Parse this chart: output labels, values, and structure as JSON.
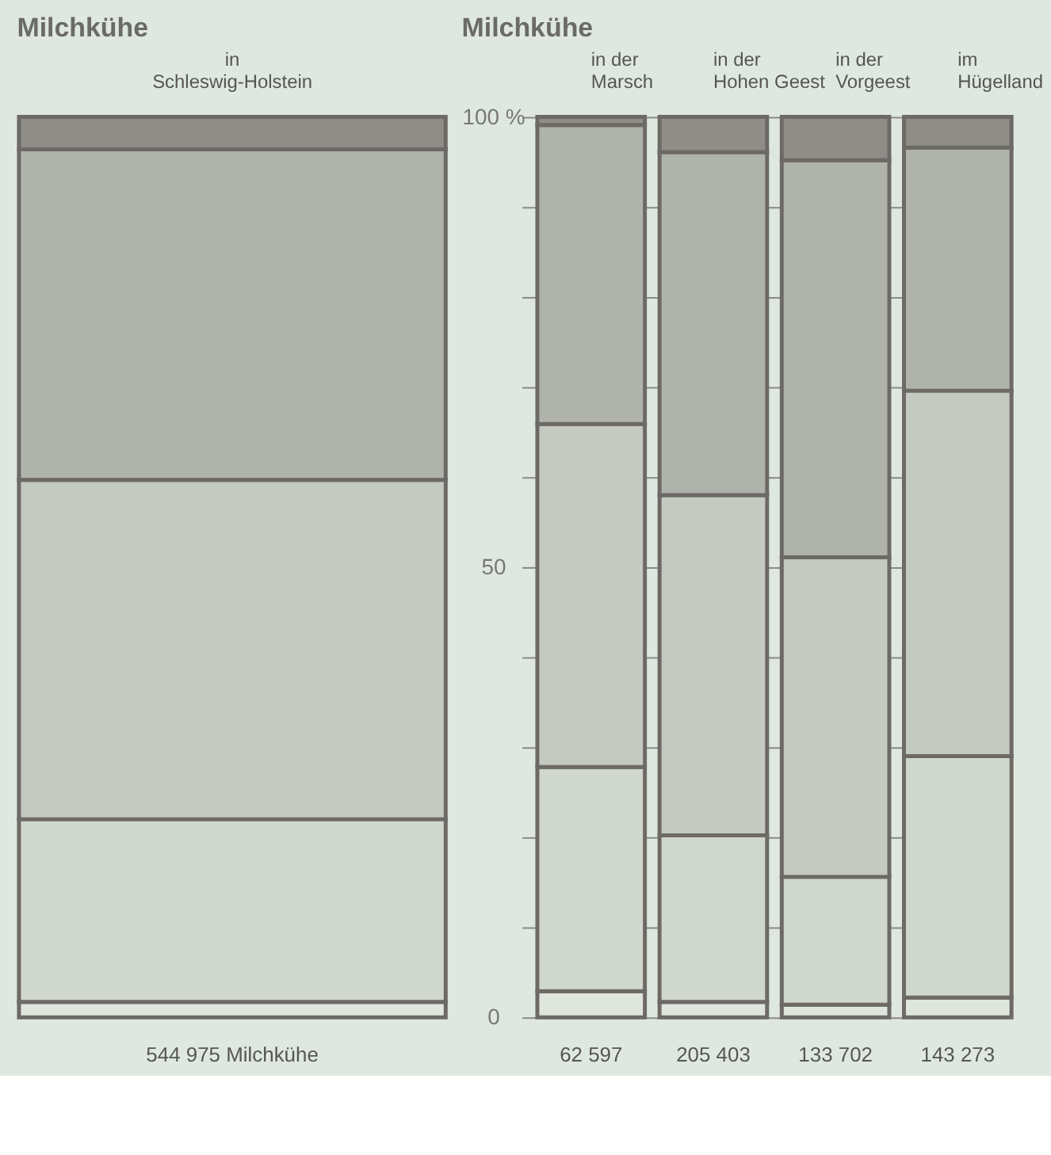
{
  "chart_data": [
    {
      "type": "bar",
      "title": "Milchkühe",
      "stacked": true,
      "categories": [
        "in\nSchleswig-Holstein"
      ],
      "series": [
        {
          "color": "#dfe6dd",
          "values": [
            1.7
          ]
        },
        {
          "color": "#d0d7cd",
          "values": [
            20.3
          ]
        },
        {
          "color": "#c4c9c1",
          "values": [
            37.7
          ]
        },
        {
          "color": "#b0b3ab",
          "values": [
            36.7
          ]
        },
        {
          "color": "#8e8d87",
          "values": [
            3.6
          ]
        }
      ],
      "ylim": [
        0,
        100
      ],
      "tick_labels": "x",
      "annotations": [
        "544 975 Milchkühe"
      ]
    },
    {
      "type": "bar",
      "title": "Milchkühe",
      "stacked": true,
      "categories": [
        "in der\nMarsch",
        "in der\nHohen Geest",
        "in der\nVorgeest",
        "im\nHügelland"
      ],
      "series": [
        {
          "color": "#dfe6dd",
          "values": [
            2.9,
            1.7,
            1.4,
            2.2
          ]
        },
        {
          "color": "#d0d7cd",
          "values": [
            24.9,
            18.5,
            14.2,
            26.8
          ]
        },
        {
          "color": "#c4c9c1",
          "values": [
            38.1,
            37.8,
            35.5,
            40.6
          ]
        },
        {
          "color": "#b0b3ab",
          "values": [
            33.2,
            38.1,
            44.1,
            27.0
          ]
        },
        {
          "color": "#8e8d87",
          "values": [
            0.9,
            3.9,
            4.8,
            3.4
          ]
        }
      ],
      "ylim": [
        0,
        100
      ],
      "yticks": [
        0,
        {
          "value": 10,
          "label": null
        },
        {
          "value": 20,
          "label": null
        },
        {
          "value": 30,
          "label": null
        },
        {
          "value": 40,
          "label": null
        },
        50,
        {
          "value": 60,
          "label": null
        },
        {
          "value": 70,
          "label": null
        },
        {
          "value": 80,
          "label": null
        },
        {
          "value": 90,
          "label": null
        },
        {
          "value": 100,
          "label": "100 %"
        }
      ],
      "grid": "y",
      "annotations": [
        "62 597",
        "205 403",
        "133 702",
        "143 273"
      ]
    }
  ]
}
